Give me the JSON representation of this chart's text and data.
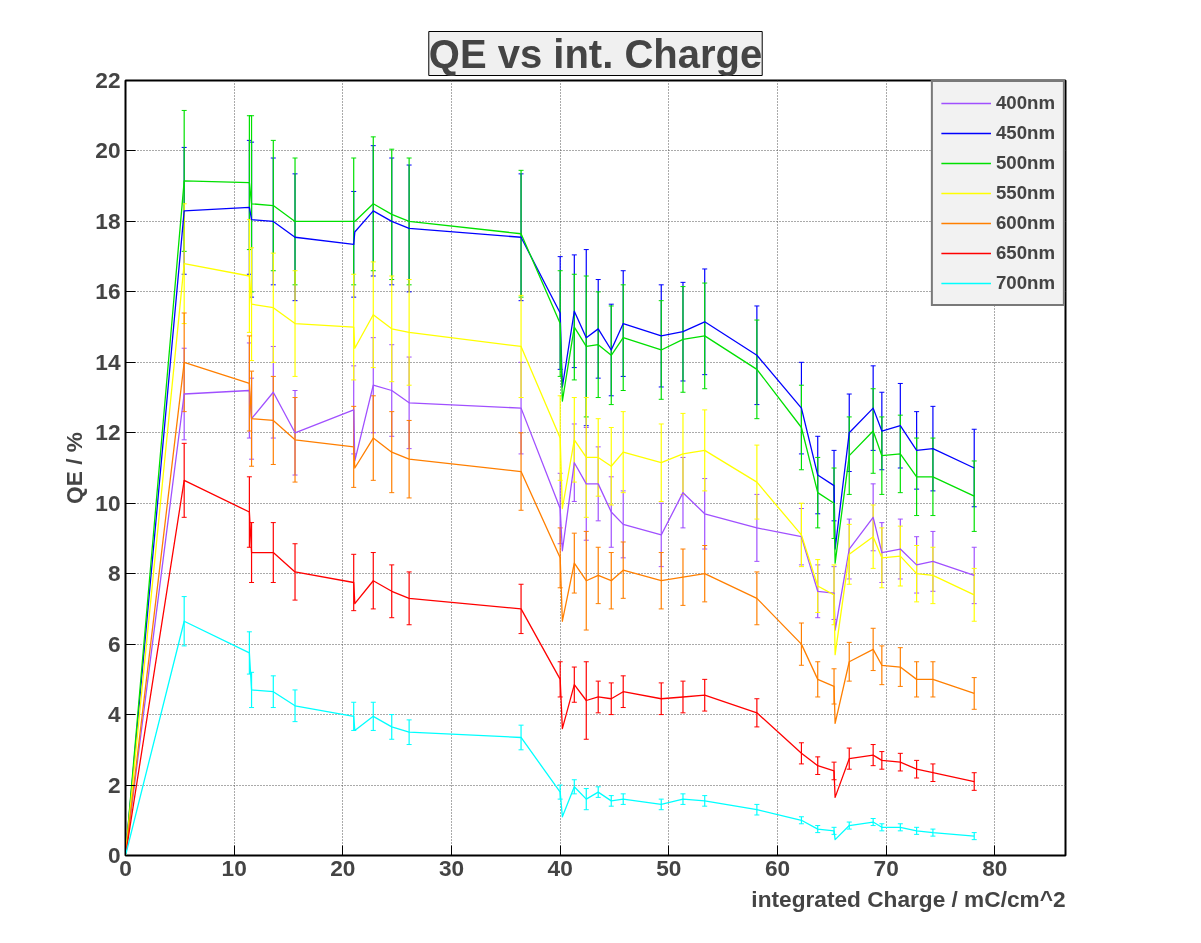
{
  "chart_data": {
    "type": "line",
    "title": "QE vs int. Charge",
    "xlabel": "integrated Charge / mC/cm^2",
    "ylabel": "QE / %",
    "x": [
      0,
      5.4,
      11.4,
      11.6,
      13.6,
      15.6,
      21.0,
      21.1,
      22.8,
      24.5,
      26.1,
      36.4,
      40.0,
      40.2,
      41.3,
      42.4,
      43.5,
      44.7,
      45.8,
      49.3,
      51.3,
      53.3,
      58.1,
      62.2,
      63.7,
      65.2,
      65.3,
      66.6,
      68.8,
      69.6,
      71.3,
      72.8,
      74.3,
      78.1
    ],
    "xlim": [
      0,
      86.5
    ],
    "ylim": [
      0,
      22
    ],
    "xticks": [
      0,
      10,
      20,
      30,
      40,
      50,
      60,
      70,
      80
    ],
    "yticks": [
      0,
      2,
      4,
      6,
      8,
      10,
      12,
      14,
      16,
      18,
      20,
      22
    ],
    "grid": true,
    "legend": "top right",
    "series": [
      {
        "name": "400nm",
        "color": "#a050ff",
        "values": [
          0,
          13.1,
          13.2,
          12.4,
          13.15,
          12.0,
          12.65,
          11.2,
          13.35,
          13.2,
          12.85,
          12.7,
          9.85,
          8.65,
          11.15,
          10.55,
          10.55,
          9.75,
          9.4,
          9.1,
          10.3,
          9.7,
          9.3,
          9.05,
          7.5,
          7.45,
          6.4,
          8.7,
          9.6,
          8.6,
          8.7,
          8.25,
          8.35,
          7.95
        ],
        "errors": [
          null,
          1.3,
          1.35,
          1.15,
          1.3,
          1.2,
          1.25,
          null,
          1.35,
          1.3,
          1.3,
          1.3,
          1.0,
          null,
          1.1,
          1.6,
          1.05,
          1.0,
          0.95,
          0.9,
          1.0,
          1.0,
          0.95,
          0.8,
          0.75,
          0.75,
          null,
          0.85,
          0.95,
          0.85,
          0.85,
          0.8,
          0.85,
          0.8
        ]
      },
      {
        "name": "450nm",
        "color": "#0000ff",
        "values": [
          0,
          18.3,
          18.4,
          18.05,
          18.0,
          17.55,
          17.35,
          17.7,
          18.3,
          18.0,
          17.8,
          17.55,
          15.4,
          13.3,
          15.45,
          14.7,
          14.95,
          14.35,
          15.1,
          14.75,
          14.87,
          15.15,
          14.2,
          12.7,
          10.8,
          10.5,
          8.7,
          12.0,
          12.7,
          12.05,
          12.2,
          11.5,
          11.55,
          11.0
        ],
        "errors": [
          null,
          1.8,
          1.9,
          2.2,
          1.8,
          1.8,
          1.5,
          null,
          1.85,
          1.8,
          1.8,
          1.8,
          1.6,
          null,
          1.6,
          2.5,
          1.4,
          1.3,
          1.5,
          1.45,
          1.4,
          1.5,
          1.4,
          1.3,
          1.1,
          1.0,
          null,
          1.1,
          1.2,
          1.1,
          1.2,
          1.1,
          1.2,
          1.1
        ]
      },
      {
        "name": "500nm",
        "color": "#00e000",
        "values": [
          0,
          19.15,
          19.1,
          18.5,
          18.45,
          18.0,
          18.0,
          18.0,
          18.5,
          18.2,
          18.0,
          17.65,
          15.1,
          12.9,
          15.0,
          14.45,
          14.5,
          14.2,
          14.7,
          14.35,
          14.65,
          14.75,
          13.8,
          12.15,
          10.3,
          10.0,
          8.3,
          11.35,
          12.05,
          11.35,
          11.4,
          10.75,
          10.75,
          10.2
        ],
        "errors": [
          null,
          2.0,
          1.9,
          2.5,
          1.85,
          1.8,
          1.8,
          null,
          1.9,
          1.85,
          1.8,
          1.8,
          1.5,
          null,
          1.5,
          2.0,
          1.5,
          1.4,
          1.5,
          1.4,
          1.5,
          1.5,
          1.4,
          1.2,
          1.0,
          1.0,
          null,
          1.1,
          1.2,
          1.1,
          1.1,
          1.1,
          1.1,
          1.0
        ]
      },
      {
        "name": "550nm",
        "color": "#ffff00",
        "values": [
          0,
          16.8,
          16.45,
          15.65,
          15.55,
          15.1,
          15.0,
          14.4,
          15.35,
          14.95,
          14.85,
          14.45,
          11.85,
          9.85,
          11.8,
          11.3,
          11.3,
          11.05,
          11.45,
          11.15,
          11.4,
          11.5,
          10.6,
          9.1,
          7.65,
          7.4,
          5.7,
          8.55,
          9.05,
          8.45,
          8.5,
          8.0,
          7.95,
          7.4
        ],
        "errors": [
          null,
          1.7,
          1.6,
          1.6,
          1.55,
          1.5,
          1.5,
          null,
          1.5,
          1.5,
          1.5,
          1.45,
          1.2,
          null,
          1.2,
          1.7,
          1.1,
          1.1,
          1.15,
          1.1,
          1.15,
          1.15,
          1.05,
          0.9,
          0.75,
          0.85,
          null,
          0.85,
          0.9,
          0.85,
          0.85,
          0.8,
          0.8,
          0.75
        ]
      },
      {
        "name": "600nm",
        "color": "#ff7f00",
        "values": [
          0,
          14.0,
          13.4,
          12.4,
          12.35,
          11.8,
          11.6,
          11.0,
          11.85,
          11.45,
          11.25,
          10.9,
          8.45,
          6.65,
          8.3,
          7.8,
          7.95,
          7.8,
          8.1,
          7.8,
          7.9,
          8.0,
          7.3,
          6.0,
          5.0,
          4.8,
          3.75,
          5.5,
          5.85,
          5.4,
          5.35,
          5.0,
          5.0,
          4.6
        ],
        "errors": [
          null,
          1.4,
          1.35,
          1.35,
          1.25,
          1.2,
          1.15,
          null,
          1.2,
          1.15,
          1.1,
          1.1,
          0.85,
          null,
          0.85,
          1.4,
          0.8,
          0.8,
          0.8,
          0.8,
          0.8,
          0.8,
          0.75,
          0.6,
          0.5,
          0.5,
          null,
          0.55,
          0.6,
          0.55,
          0.55,
          0.5,
          0.5,
          0.45
        ]
      },
      {
        "name": "650nm",
        "color": "#ff0000",
        "values": [
          0,
          10.65,
          9.75,
          8.6,
          8.6,
          8.05,
          7.75,
          7.15,
          7.8,
          7.5,
          7.3,
          7.0,
          5.0,
          3.6,
          4.85,
          4.4,
          4.5,
          4.45,
          4.65,
          4.45,
          4.5,
          4.55,
          4.05,
          2.9,
          2.55,
          2.4,
          1.65,
          2.75,
          2.85,
          2.7,
          2.65,
          2.45,
          2.35,
          2.1
        ],
        "errors": [
          null,
          1.05,
          1.0,
          0.85,
          0.85,
          0.8,
          0.8,
          null,
          0.8,
          0.75,
          0.75,
          0.7,
          0.5,
          null,
          0.5,
          1.1,
          0.45,
          0.45,
          0.45,
          0.45,
          0.45,
          0.45,
          0.4,
          0.3,
          0.25,
          0.25,
          null,
          0.3,
          0.3,
          0.25,
          0.25,
          0.25,
          0.25,
          0.25
        ]
      },
      {
        "name": "700nm",
        "color": "#00ffff",
        "values": [
          0,
          6.65,
          5.75,
          4.7,
          4.65,
          4.25,
          3.95,
          3.55,
          3.95,
          3.65,
          3.5,
          3.35,
          1.8,
          1.1,
          1.95,
          1.6,
          1.8,
          1.55,
          1.6,
          1.45,
          1.6,
          1.55,
          1.3,
          1.0,
          0.75,
          0.7,
          0.45,
          0.85,
          0.95,
          0.8,
          0.8,
          0.7,
          0.65,
          0.55
        ],
        "errors": [
          null,
          0.7,
          0.6,
          0.5,
          0.45,
          0.45,
          0.4,
          null,
          0.4,
          0.35,
          0.35,
          0.35,
          0.2,
          null,
          0.2,
          0.3,
          0.15,
          0.15,
          0.15,
          0.15,
          0.15,
          0.15,
          0.15,
          0.1,
          0.1,
          0.1,
          null,
          0.1,
          0.1,
          0.1,
          0.1,
          0.1,
          0.1,
          0.1
        ]
      }
    ]
  }
}
